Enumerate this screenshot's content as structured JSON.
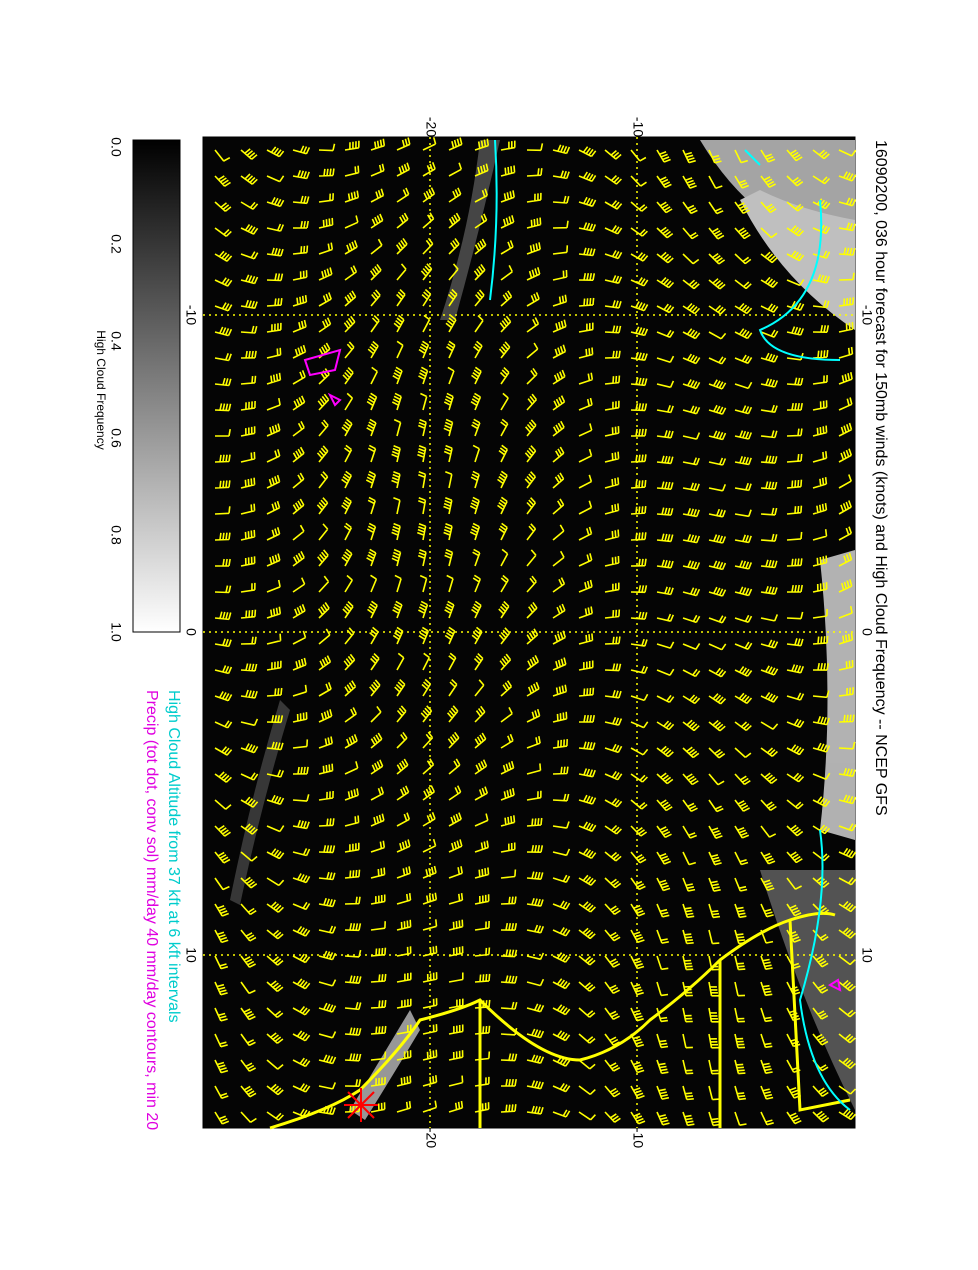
{
  "title": "16090200, 036 hour forecast for 150mb winds (knots) and High Cloud Frequency -- NCEP GFS",
  "legend": [
    "High Cloud Altitude from 37 kft at 6 kft intervals",
    "Precip (tot dot, conv sol) mm/day 40 mm/day contours, min 20"
  ],
  "colorbar": {
    "label": "High Cloud Frequency",
    "ticks": [
      "0.0",
      "0.2",
      "0.4",
      "0.6",
      "0.8",
      "1.0"
    ]
  },
  "axes": {
    "lon_ticks": [
      "-20",
      "-10"
    ],
    "lat_ticks": [
      "-10",
      "0",
      "10"
    ]
  }
}
